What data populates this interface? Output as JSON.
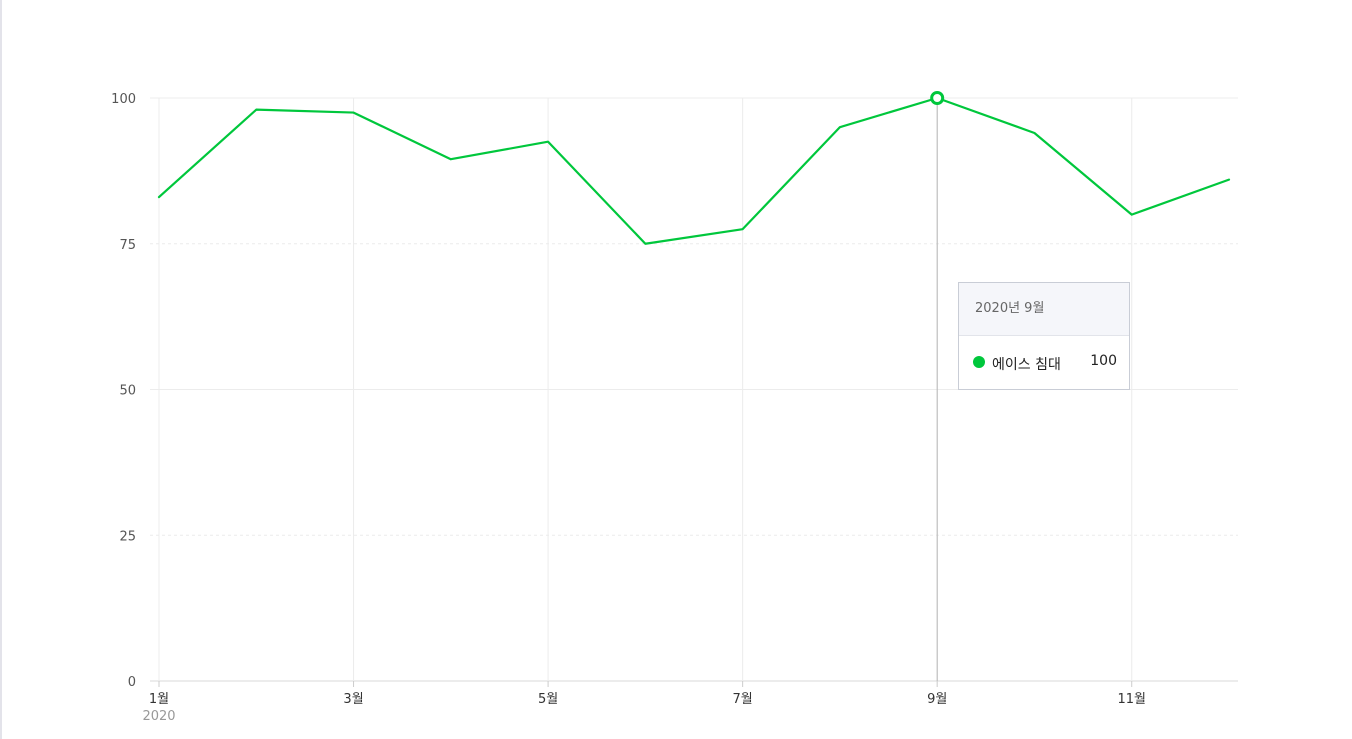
{
  "chart_data": {
    "type": "line",
    "title": "",
    "xlabel": "",
    "ylabel": "",
    "x": [
      "2020-01",
      "2020-02",
      "2020-03",
      "2020-04",
      "2020-05",
      "2020-06",
      "2020-07",
      "2020-08",
      "2020-09",
      "2020-10",
      "2020-11",
      "2020-12"
    ],
    "x_tick_labels": [
      "1월",
      "3월",
      "5월",
      "7월",
      "9월",
      "11월"
    ],
    "x_tick_indices": [
      0,
      2,
      4,
      6,
      8,
      10
    ],
    "x_tick_sublabel": "2020",
    "y_ticks": [
      0,
      25,
      50,
      75,
      100
    ],
    "ylim": [
      0,
      100
    ],
    "grid": true,
    "series": [
      {
        "name": "에이스 침대",
        "color": "#00c73c",
        "values": [
          83,
          98,
          97.5,
          89.5,
          92.5,
          75,
          77.5,
          95,
          100,
          94,
          80,
          86
        ]
      }
    ],
    "highlight_index": 8,
    "tooltip": {
      "header": "2020년 9월",
      "series_label": "에이스 침대",
      "value": "100"
    }
  }
}
